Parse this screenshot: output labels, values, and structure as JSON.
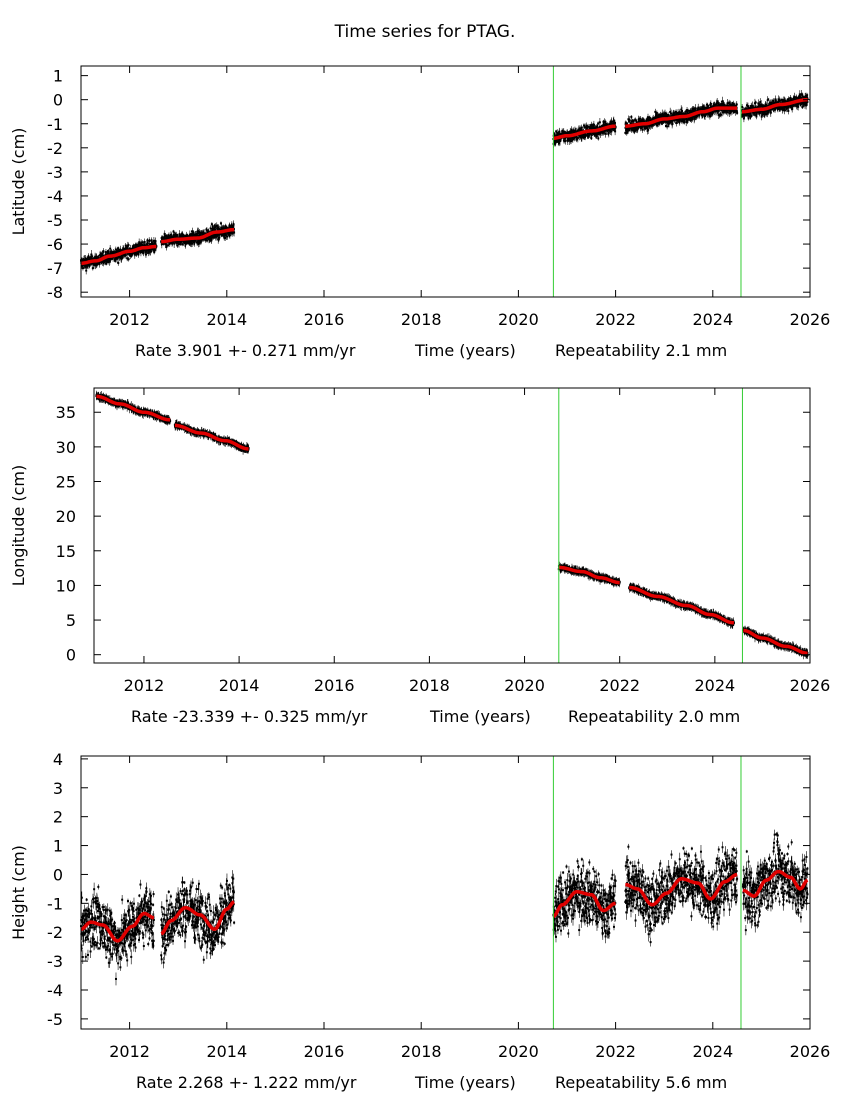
{
  "title": "Time series for PTAG.",
  "colors": {
    "data": "#000000",
    "fit": "#e00000",
    "marker": "#33cc33",
    "axis": "#000000"
  },
  "chart_data": [
    {
      "type": "scatter",
      "title": "Time series for PTAG.",
      "ylabel": "Latitude (cm)",
      "xlabel": "Time (years)",
      "rate_text": "Rate 3.901 +- 0.271 mm/yr",
      "repeat_text": "Repeatability 2.1 mm",
      "xlim": [
        2011.0,
        2026.0
      ],
      "ylim": [
        -8.2,
        1.4
      ],
      "xticks": [
        2012,
        2014,
        2016,
        2018,
        2020,
        2022,
        2024,
        2026
      ],
      "xtick_labels": [
        "2012",
        "2014",
        "2016",
        "2018",
        "2020",
        "2022",
        "2024",
        "2026"
      ],
      "yticks": [
        1,
        0,
        -1,
        -2,
        -3,
        -4,
        -5,
        -6,
        -7,
        -8
      ],
      "ytick_labels": [
        "1",
        "0",
        "-1",
        "-2",
        "-3",
        "-4",
        "-5",
        "-6",
        "-7",
        "-8"
      ],
      "markers": [
        2020.72,
        2024.58
      ],
      "noise": 0.18,
      "segments": [
        {
          "x": [
            2011.0,
            2011.3,
            2011.6,
            2012.0,
            2012.3,
            2012.55
          ],
          "y": [
            -6.8,
            -6.7,
            -6.5,
            -6.3,
            -6.15,
            -6.1
          ]
        },
        {
          "x": [
            2012.65,
            2013.0,
            2013.4,
            2013.8,
            2014.15
          ],
          "y": [
            -5.9,
            -5.8,
            -5.75,
            -5.5,
            -5.4
          ]
        },
        {
          "x": [
            2020.72,
            2021.0,
            2021.5,
            2022.0
          ],
          "y": [
            -1.6,
            -1.5,
            -1.3,
            -1.1
          ]
        },
        {
          "x": [
            2022.2,
            2022.6,
            2023.0,
            2023.4,
            2023.8,
            2024.1,
            2024.5
          ],
          "y": [
            -1.1,
            -1.0,
            -0.8,
            -0.7,
            -0.5,
            -0.35,
            -0.35
          ]
        },
        {
          "x": [
            2024.6,
            2025.0,
            2025.4,
            2025.95
          ],
          "y": [
            -0.5,
            -0.4,
            -0.2,
            0.0
          ]
        }
      ]
    },
    {
      "type": "scatter",
      "ylabel": "Longitude (cm)",
      "xlabel": "Time (years)",
      "rate_text": "Rate -23.339 +- 0.325 mm/yr",
      "repeat_text": "Repeatability 2.0 mm",
      "xlim": [
        2010.95,
        2026.0
      ],
      "ylim": [
        -1.2,
        38.5
      ],
      "xticks": [
        2012,
        2014,
        2016,
        2018,
        2020,
        2022,
        2024,
        2026
      ],
      "xtick_labels": [
        "2012",
        "2014",
        "2016",
        "2018",
        "2020",
        "2022",
        "2024",
        "2026"
      ],
      "yticks": [
        35,
        30,
        25,
        20,
        15,
        10,
        5,
        0
      ],
      "ytick_labels": [
        "35",
        "30",
        "25",
        "20",
        "15",
        "10",
        "5",
        "0"
      ],
      "markers": [
        2020.72,
        2024.58
      ],
      "noise": 0.22,
      "segments": [
        {
          "x": [
            2011.0,
            2011.5,
            2012.0,
            2012.55
          ],
          "y": [
            37.3,
            36.2,
            35.0,
            33.9
          ]
        },
        {
          "x": [
            2012.65,
            2013.2,
            2013.7,
            2014.2
          ],
          "y": [
            33.1,
            32.0,
            30.9,
            29.7
          ]
        },
        {
          "x": [
            2020.72,
            2021.2,
            2021.6,
            2022.0
          ],
          "y": [
            12.6,
            12.0,
            11.1,
            10.4
          ]
        },
        {
          "x": [
            2022.2,
            2022.8,
            2023.4,
            2023.9,
            2024.4
          ],
          "y": [
            9.7,
            8.4,
            7.1,
            5.8,
            4.6
          ]
        },
        {
          "x": [
            2024.6,
            2025.0,
            2025.5,
            2025.95
          ],
          "y": [
            3.5,
            2.4,
            1.2,
            0.2
          ]
        }
      ]
    },
    {
      "type": "scatter",
      "ylabel": "Height (cm)",
      "xlabel": "Time (years)",
      "rate_text": "Rate 2.268 +- 1.222 mm/yr",
      "repeat_text": "Repeatability 5.6 mm",
      "xlim": [
        2011.0,
        2026.0
      ],
      "ylim": [
        -5.35,
        4.1
      ],
      "xticks": [
        2012,
        2014,
        2016,
        2018,
        2020,
        2022,
        2024,
        2026
      ],
      "xtick_labels": [
        "2012",
        "2014",
        "2016",
        "2018",
        "2020",
        "2022",
        "2024",
        "2026"
      ],
      "yticks": [
        4,
        3,
        2,
        1,
        0,
        -1,
        -2,
        -3,
        -4,
        -5
      ],
      "ytick_labels": [
        "4",
        "3",
        "2",
        "1",
        "0",
        "-1",
        "-2",
        "-3",
        "-4",
        "-5"
      ],
      "markers": [
        2020.72,
        2024.58
      ],
      "noise": 0.7,
      "segments": [
        {
          "x": [
            2011.0,
            2011.2,
            2011.45,
            2011.75,
            2012.05,
            2012.3,
            2012.5
          ],
          "y": [
            -1.9,
            -1.65,
            -1.75,
            -2.3,
            -1.8,
            -1.35,
            -1.5
          ]
        },
        {
          "x": [
            2012.65,
            2012.85,
            2013.15,
            2013.45,
            2013.75,
            2014.0,
            2014.15
          ],
          "y": [
            -2.05,
            -1.6,
            -1.15,
            -1.4,
            -1.9,
            -1.2,
            -0.95
          ]
        },
        {
          "x": [
            2020.72,
            2020.9,
            2021.2,
            2021.5,
            2021.75,
            2022.0
          ],
          "y": [
            -1.45,
            -1.05,
            -0.6,
            -0.7,
            -1.25,
            -1.0
          ]
        },
        {
          "x": [
            2022.2,
            2022.45,
            2022.75,
            2023.05,
            2023.35,
            2023.7,
            2023.95,
            2024.25,
            2024.5
          ],
          "y": [
            -0.35,
            -0.5,
            -1.05,
            -0.65,
            -0.15,
            -0.3,
            -0.85,
            -0.25,
            0.0
          ]
        },
        {
          "x": [
            2024.62,
            2024.85,
            2025.1,
            2025.35,
            2025.6,
            2025.8,
            2025.95
          ],
          "y": [
            -0.55,
            -0.75,
            -0.2,
            0.1,
            -0.1,
            -0.5,
            -0.2
          ]
        }
      ]
    }
  ]
}
